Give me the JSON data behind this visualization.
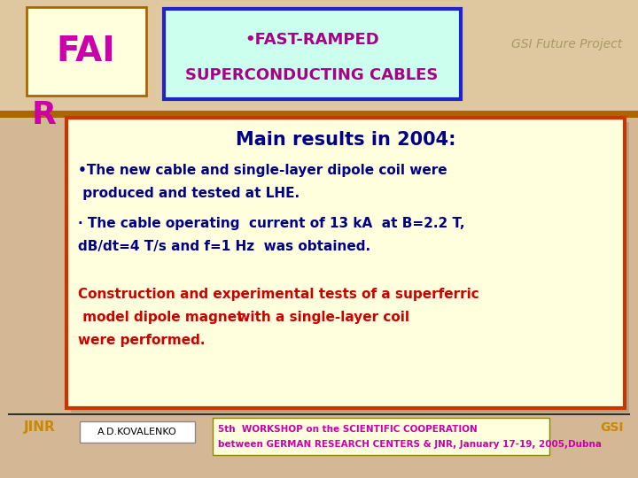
{
  "bg_color": "#d4b896",
  "fai_color": "#cc00aa",
  "fai_box_facecolor": "#ffffdd",
  "fai_box_edgecolor": "#aa6600",
  "title_box_text1": "•FAST-RAMPED",
  "title_box_text2": "SUPERCONDUCTING CABLES",
  "title_box_bg": "#ccffee",
  "title_box_border": "#2222cc",
  "title_text_color": "#aa0088",
  "gsi_text": "GSI Future Project",
  "gsi_color": "#aa9966",
  "main_box_bg": "#ffffdd",
  "main_box_border": "#cc3300",
  "main_title": "Main results in 2004:",
  "main_title_color": "#000088",
  "bullet1_line1": "•The new cable and single-layer dipole coil were",
  "bullet1_line2": " produced and tested at LHE.",
  "bullet2_line1": "· The cable operating  current of 13 kA  at B=2.2 T,",
  "bullet2_line2": "dB/dt=4 T/s and f=1 Hz  was obtained.",
  "bullets_color": "#000088",
  "construction_line1": "Construction and experimental tests of a superferric",
  "construction_line2a": " model dipole magnet",
  "construction_line2b": " with a single-layer coil",
  "construction_line3": "were performed.",
  "construction_color": "#cc0000",
  "footer_line_color": "#333333",
  "jinr_color": "#cc8800",
  "author_text": "A.D.KOVALENKO",
  "workshop_text1": "5th  WORKSHOP on the SCIENTIFIC COOPERATION",
  "workshop_text2": "between GERMAN RESEARCH CENTERS & JNR, January 17-19, 2005,Dubna",
  "workshop_color": "#cc00aa",
  "workshop_box_bg": "#ffffdd",
  "workshop_box_border": "#888800",
  "gsi_logo_color": "#cc8800",
  "separator_color": "#aa6600"
}
